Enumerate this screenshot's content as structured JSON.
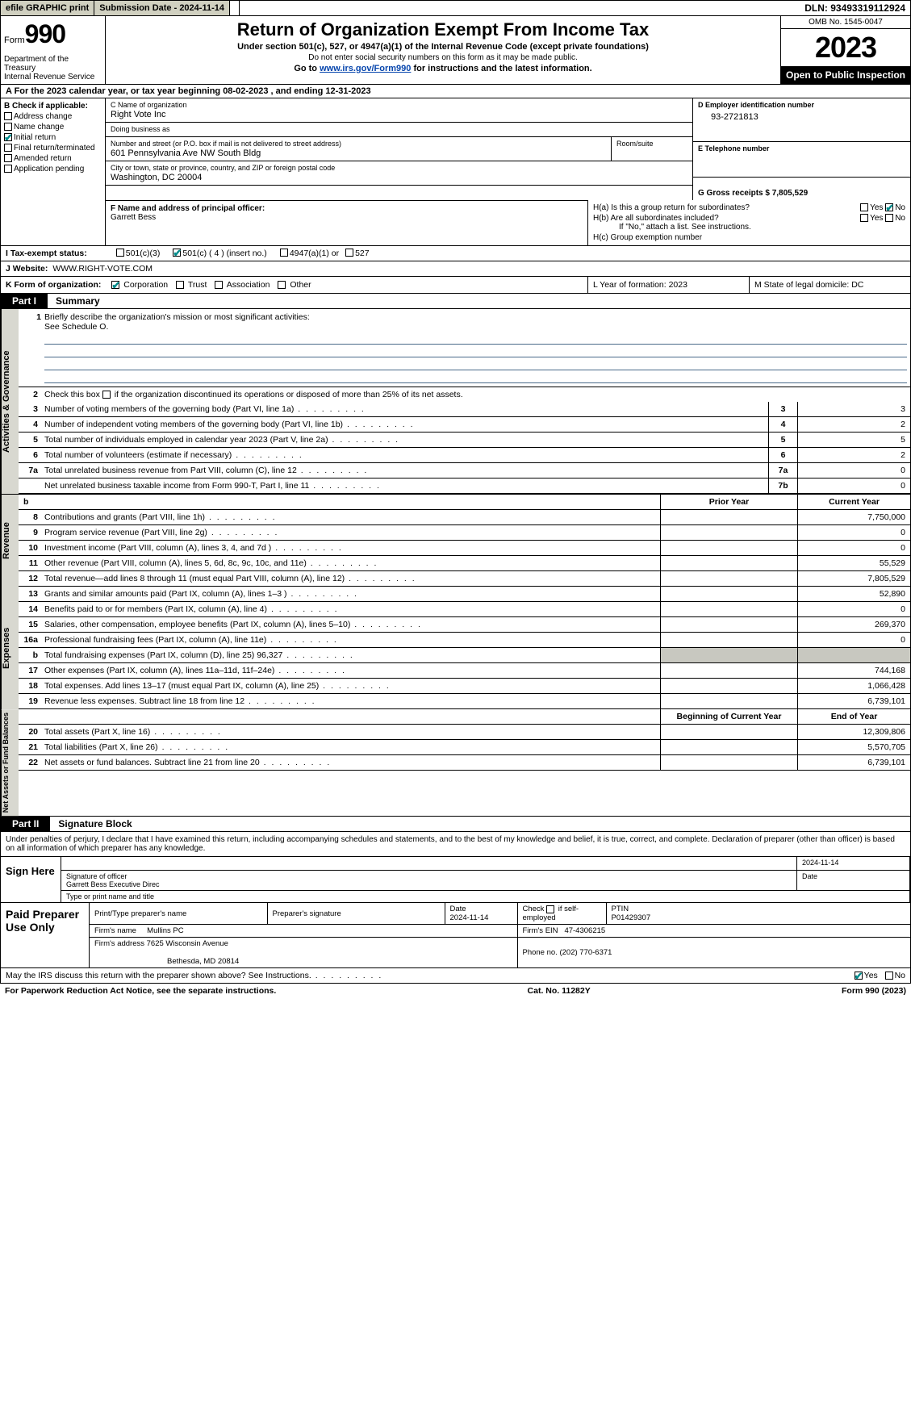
{
  "topbar": {
    "efile": "efile GRAPHIC print",
    "submission_label": "Submission Date - 2024-11-14",
    "dln_label": "DLN: 93493319112924"
  },
  "header": {
    "form_word": "Form",
    "form_num": "990",
    "dept": "Department of the Treasury",
    "irs": "Internal Revenue Service",
    "title": "Return of Organization Exempt From Income Tax",
    "subtitle": "Under section 501(c), 527, or 4947(a)(1) of the Internal Revenue Code (except private foundations)",
    "ssn_note": "Do not enter social security numbers on this form as it may be made public.",
    "goto_pre": "Go to ",
    "goto_link": "www.irs.gov/Form990",
    "goto_post": " for instructions and the latest information.",
    "omb": "OMB No. 1545-0047",
    "year": "2023",
    "open": "Open to Public Inspection"
  },
  "row_a": "A For the 2023 calendar year, or tax year beginning 08-02-2023    , and ending 12-31-2023",
  "box_b": {
    "label": "B Check if applicable:",
    "items": [
      "Address change",
      "Name change",
      "Initial return",
      "Final return/terminated",
      "Amended return",
      "Application pending"
    ],
    "checked_idx": 2
  },
  "box_c": {
    "name_lbl": "C Name of organization",
    "name": "Right Vote Inc",
    "dba_lbl": "Doing business as",
    "dba": "",
    "street_lbl": "Number and street (or P.O. box if mail is not delivered to street address)",
    "street": "601 Pennsylvania Ave NW South Bldg",
    "room_lbl": "Room/suite",
    "city_lbl": "City or town, state or province, country, and ZIP or foreign postal code",
    "city": "Washington, DC  20004"
  },
  "box_d": {
    "lbl": "D Employer identification number",
    "val": "93-2721813"
  },
  "box_e": {
    "lbl": "E Telephone number",
    "val": ""
  },
  "box_g": {
    "lbl": "G Gross receipts $ 7,805,529"
  },
  "box_f": {
    "lbl": "F  Name and address of principal officer:",
    "name": "Garrett Bess"
  },
  "box_h": {
    "ha": "H(a)  Is this a group return for subordinates?",
    "hb": "H(b)  Are all subordinates included?",
    "hb_note": "If \"No,\" attach a list. See instructions.",
    "hc": "H(c)  Group exemption number"
  },
  "row_i": {
    "lbl": "I    Tax-exempt status:",
    "o1": "501(c)(3)",
    "o2": "501(c) ( 4 ) (insert no.)",
    "o3": "4947(a)(1) or",
    "o4": "527"
  },
  "row_j": {
    "lbl": "J    Website:",
    "val": "WWW.RIGHT-VOTE.COM"
  },
  "row_k": {
    "lbl": "K Form of organization:",
    "opts": [
      "Corporation",
      "Trust",
      "Association",
      "Other"
    ]
  },
  "row_l": "L Year of formation: 2023",
  "row_m": "M State of legal domicile: DC",
  "part1": {
    "num": "Part I",
    "title": "Summary"
  },
  "mission": {
    "num": "1",
    "lbl": "Briefly describe the organization's mission or most significant activities:",
    "val": "See Schedule O."
  },
  "line2": {
    "num": "2",
    "txt_a": "Check this box ",
    "txt_b": " if the organization discontinued its operations or disposed of more than 25% of its net assets."
  },
  "gov_rows": [
    {
      "n": "3",
      "d": "Number of voting members of the governing body (Part VI, line 1a)",
      "c": "3",
      "v": "3"
    },
    {
      "n": "4",
      "d": "Number of independent voting members of the governing body (Part VI, line 1b)",
      "c": "4",
      "v": "2"
    },
    {
      "n": "5",
      "d": "Total number of individuals employed in calendar year 2023 (Part V, line 2a)",
      "c": "5",
      "v": "5"
    },
    {
      "n": "6",
      "d": "Total number of volunteers (estimate if necessary)",
      "c": "6",
      "v": "2"
    },
    {
      "n": "7a",
      "d": "Total unrelated business revenue from Part VIII, column (C), line 12",
      "c": "7a",
      "v": "0"
    },
    {
      "n": "",
      "d": "Net unrelated business taxable income from Form 990-T, Part I, line 11",
      "c": "7b",
      "v": "0"
    }
  ],
  "rev_head": {
    "b": "b",
    "p": "Prior Year",
    "c": "Current Year"
  },
  "rev_rows": [
    {
      "n": "8",
      "d": "Contributions and grants (Part VIII, line 1h)",
      "p": "",
      "v": "7,750,000"
    },
    {
      "n": "9",
      "d": "Program service revenue (Part VIII, line 2g)",
      "p": "",
      "v": "0"
    },
    {
      "n": "10",
      "d": "Investment income (Part VIII, column (A), lines 3, 4, and 7d )",
      "p": "",
      "v": "0"
    },
    {
      "n": "11",
      "d": "Other revenue (Part VIII, column (A), lines 5, 6d, 8c, 9c, 10c, and 11e)",
      "p": "",
      "v": "55,529"
    },
    {
      "n": "12",
      "d": "Total revenue—add lines 8 through 11 (must equal Part VIII, column (A), line 12)",
      "p": "",
      "v": "7,805,529"
    }
  ],
  "exp_rows": [
    {
      "n": "13",
      "d": "Grants and similar amounts paid (Part IX, column (A), lines 1–3 )",
      "p": "",
      "v": "52,890"
    },
    {
      "n": "14",
      "d": "Benefits paid to or for members (Part IX, column (A), line 4)",
      "p": "",
      "v": "0"
    },
    {
      "n": "15",
      "d": "Salaries, other compensation, employee benefits (Part IX, column (A), lines 5–10)",
      "p": "",
      "v": "269,370"
    },
    {
      "n": "16a",
      "d": "Professional fundraising fees (Part IX, column (A), line 11e)",
      "p": "",
      "v": "0"
    },
    {
      "n": "b",
      "d": "Total fundraising expenses (Part IX, column (D), line 25) 96,327",
      "p": "grey",
      "v": ""
    },
    {
      "n": "17",
      "d": "Other expenses (Part IX, column (A), lines 11a–11d, 11f–24e)",
      "p": "",
      "v": "744,168"
    },
    {
      "n": "18",
      "d": "Total expenses. Add lines 13–17 (must equal Part IX, column (A), line 25)",
      "p": "",
      "v": "1,066,428"
    },
    {
      "n": "19",
      "d": "Revenue less expenses. Subtract line 18 from line 12",
      "p": "",
      "v": "6,739,101"
    }
  ],
  "net_head": {
    "p": "Beginning of Current Year",
    "c": "End of Year"
  },
  "net_rows": [
    {
      "n": "20",
      "d": "Total assets (Part X, line 16)",
      "p": "",
      "v": "12,309,806"
    },
    {
      "n": "21",
      "d": "Total liabilities (Part X, line 26)",
      "p": "",
      "v": "5,570,705"
    },
    {
      "n": "22",
      "d": "Net assets or fund balances. Subtract line 21 from line 20",
      "p": "",
      "v": "6,739,101"
    }
  ],
  "side_tabs": {
    "gov": "Activities & Governance",
    "rev": "Revenue",
    "exp": "Expenses",
    "net": "Net Assets or Fund Balances"
  },
  "part2": {
    "num": "Part II",
    "title": "Signature Block"
  },
  "sig_decl": "Under penalties of perjury, I declare that I have examined this return, including accompanying schedules and statements, and to the best of my knowledge and belief, it is true, correct, and complete. Declaration of preparer (other than officer) is based on all information of which preparer has any knowledge.",
  "sign": {
    "here": "Sign Here",
    "date": "2024-11-14",
    "sig_lbl": "Signature of officer",
    "date_lbl": "Date",
    "name": "Garrett Bess  Executive Direc",
    "name_lbl": "Type or print name and title"
  },
  "prep": {
    "label": "Paid Preparer Use Only",
    "h_name": "Print/Type preparer's name",
    "h_sig": "Preparer's signature",
    "h_date": "Date",
    "date": "2024-11-14",
    "h_check": "Check         if self-employed",
    "h_ptin": "PTIN",
    "ptin": "P01429307",
    "firm_name_lbl": "Firm's name",
    "firm_name": "Mullins PC",
    "firm_ein_lbl": "Firm's EIN",
    "firm_ein": "47-4306215",
    "firm_addr_lbl": "Firm's address",
    "firm_addr1": "7625 Wisconsin Avenue",
    "firm_addr2": "Bethesda, MD  20814",
    "phone_lbl": "Phone no.",
    "phone": "(202) 770-6371"
  },
  "discuss": "May the IRS discuss this return with the preparer shown above? See Instructions.",
  "yes": "Yes",
  "no": "No",
  "footer": {
    "left": "For Paperwork Reduction Act Notice, see the separate instructions.",
    "mid": "Cat. No. 11282Y",
    "right": "Form 990 (2023)"
  },
  "colors": {
    "check": "#008b8b",
    "link": "#0645ad",
    "greybg": "#d8d8d0"
  }
}
